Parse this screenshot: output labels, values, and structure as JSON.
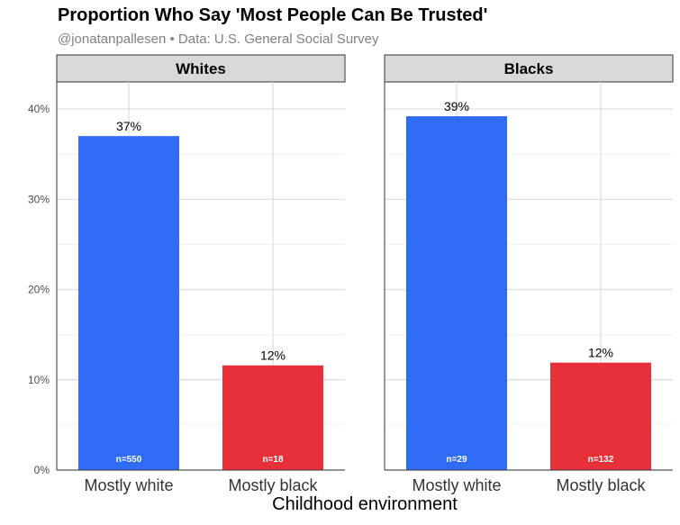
{
  "chart_data": {
    "type": "bar",
    "title": "Proportion Who Say 'Most People Can Be Trusted'",
    "subtitle": "@jonatanpallesen • Data: U.S. General Social Survey",
    "xlabel": "Childhood environment",
    "ylabel": "",
    "ylim": [
      0,
      43
    ],
    "yticks": [
      {
        "value": 0,
        "label": "0%"
      },
      {
        "value": 10,
        "label": "10%"
      },
      {
        "value": 20,
        "label": "20%"
      },
      {
        "value": 30,
        "label": "30%"
      },
      {
        "value": 40,
        "label": "40%"
      }
    ],
    "categories": [
      "Mostly white",
      "Mostly black"
    ],
    "grid": true,
    "legend": "none",
    "colors": {
      "Mostly white": "#2f6bf5",
      "Mostly black": "#e8303a"
    },
    "facets": [
      {
        "name": "Whites",
        "values": [
          37,
          11.6
        ],
        "value_labels": [
          "37%",
          "12%"
        ],
        "n_labels": [
          "n=550",
          "n=18"
        ]
      },
      {
        "name": "Blacks",
        "values": [
          39.2,
          11.9
        ],
        "value_labels": [
          "39%",
          "12%"
        ],
        "n_labels": [
          "n=29",
          "n=132"
        ]
      }
    ]
  }
}
